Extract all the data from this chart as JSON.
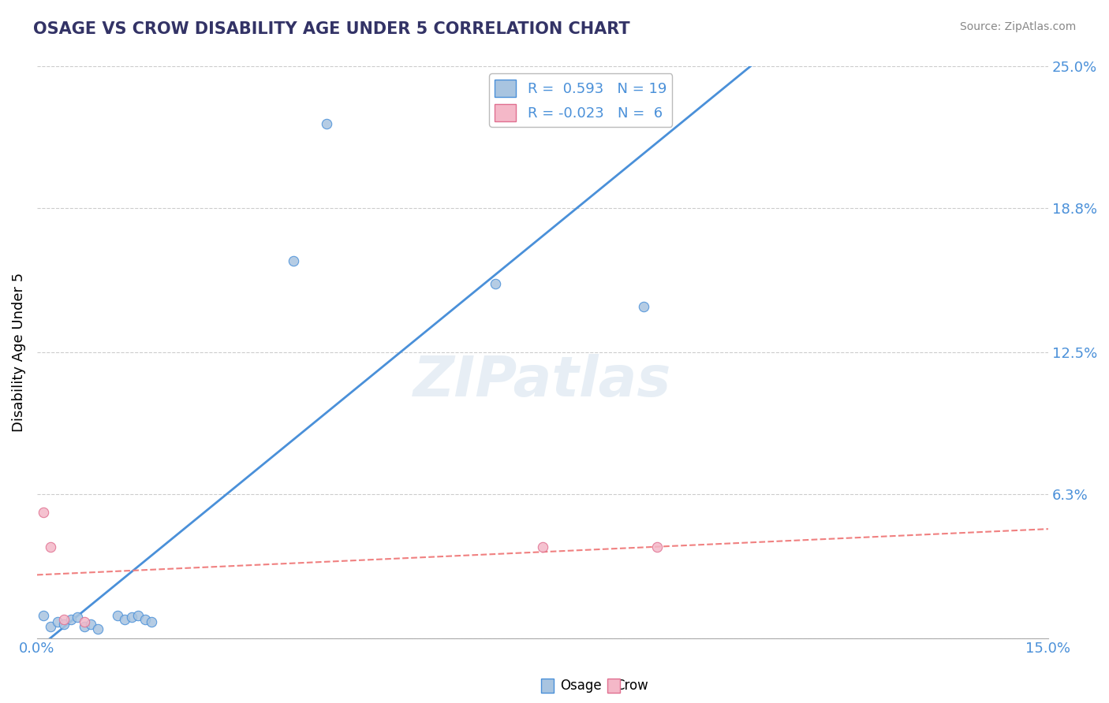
{
  "title": "OSAGE VS CROW DISABILITY AGE UNDER 5 CORRELATION CHART",
  "source": "Source: ZipAtlas.com",
  "ylabel_label": "Disability Age Under 5",
  "x_min": 0.0,
  "x_max": 0.15,
  "y_min": 0.0,
  "y_max": 0.25,
  "x_ticks": [
    0.0,
    0.15
  ],
  "x_tick_labels": [
    "0.0%",
    "15.0%"
  ],
  "y_ticks": [
    0.0,
    0.063,
    0.125,
    0.188,
    0.25
  ],
  "y_tick_labels": [
    "",
    "6.3%",
    "12.5%",
    "18.8%",
    "25.0%"
  ],
  "osage_x": [
    0.001,
    0.002,
    0.003,
    0.004,
    0.005,
    0.006,
    0.007,
    0.008,
    0.009,
    0.012,
    0.013,
    0.014,
    0.015,
    0.016,
    0.017,
    0.038,
    0.043,
    0.068,
    0.09
  ],
  "osage_y": [
    0.01,
    0.005,
    0.007,
    0.006,
    0.008,
    0.009,
    0.005,
    0.006,
    0.004,
    0.01,
    0.008,
    0.009,
    0.01,
    0.008,
    0.007,
    0.165,
    0.225,
    0.155,
    0.145
  ],
  "crow_x": [
    0.001,
    0.002,
    0.004,
    0.007,
    0.075,
    0.092
  ],
  "crow_y": [
    0.055,
    0.04,
    0.008,
    0.007,
    0.04,
    0.04
  ],
  "osage_color": "#a8c4e0",
  "crow_color": "#f4b8c8",
  "osage_line_color": "#4a90d9",
  "crow_line_color": "#f08080",
  "crow_edge_color": "#e07090",
  "legend_R_osage": " 0.593",
  "legend_N_osage": "19",
  "legend_R_crow": "-0.023",
  "legend_N_crow": " 6",
  "background_color": "#ffffff",
  "watermark": "ZIPatlas",
  "dot_size": 80
}
